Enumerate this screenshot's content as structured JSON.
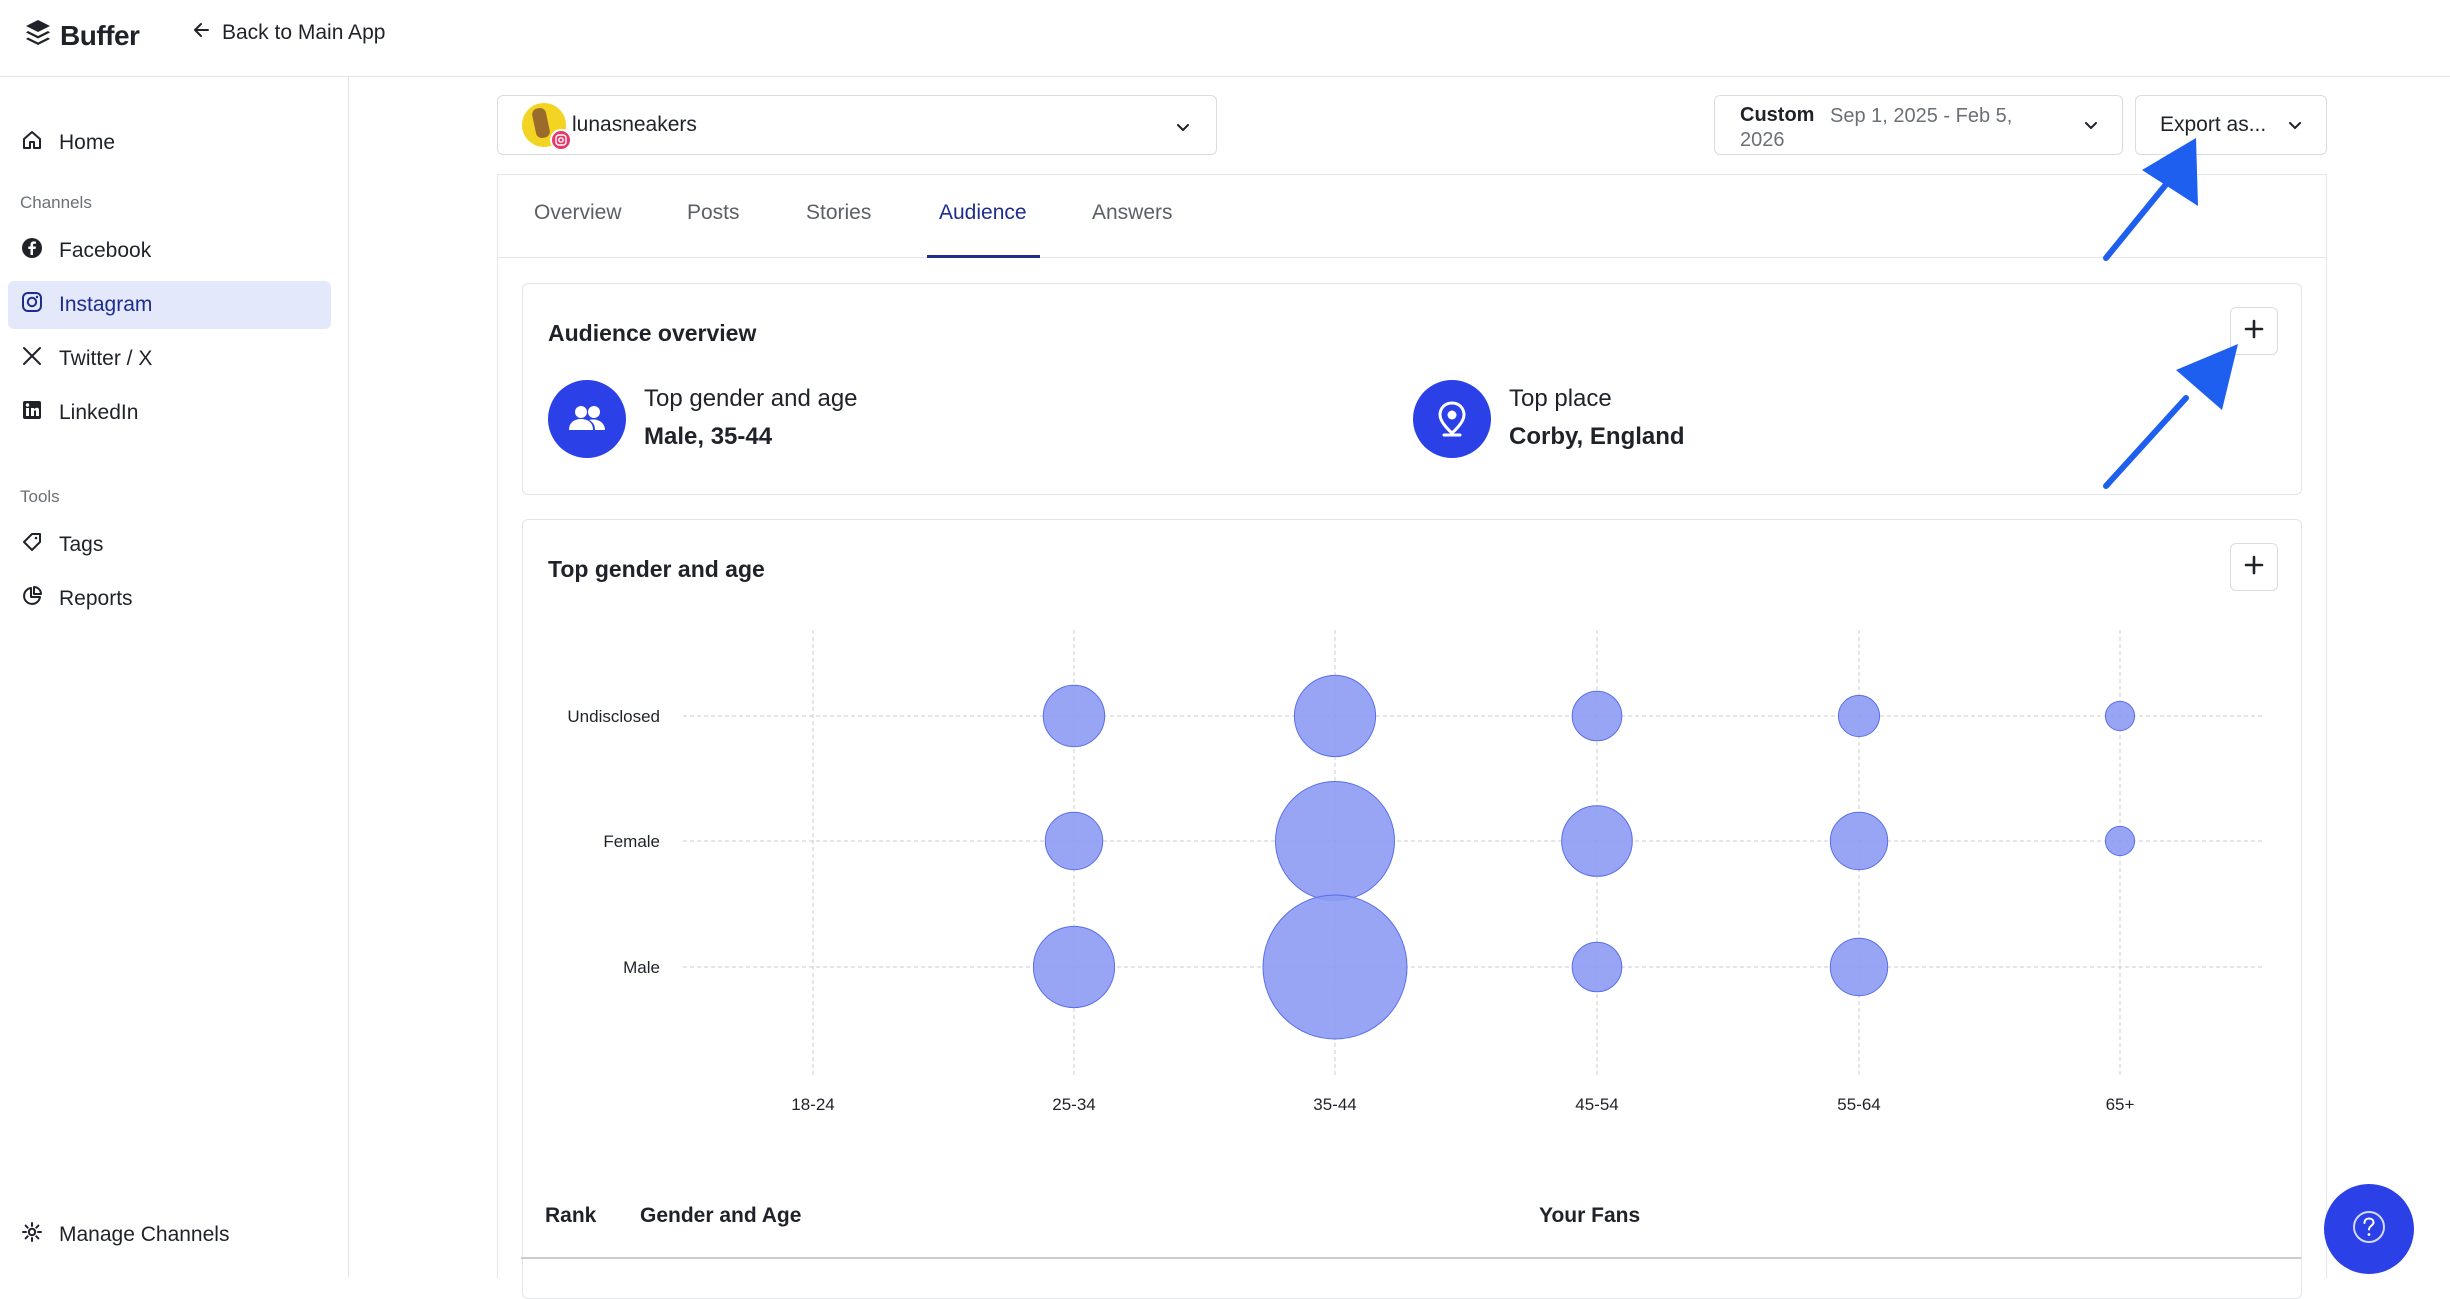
{
  "app": {
    "brand": "Buffer",
    "back_label": "Back to Main App"
  },
  "sidebar": {
    "home": "Home",
    "channels_heading": "Channels",
    "channels": [
      {
        "label": "Facebook",
        "icon": "facebook-icon"
      },
      {
        "label": "Instagram",
        "icon": "instagram-icon",
        "active": true
      },
      {
        "label": "Twitter / X",
        "icon": "x-icon"
      },
      {
        "label": "LinkedIn",
        "icon": "linkedin-icon"
      }
    ],
    "tools_heading": "Tools",
    "tools": [
      {
        "label": "Tags",
        "icon": "tag-icon"
      },
      {
        "label": "Reports",
        "icon": "pie-chart-icon"
      }
    ],
    "manage_channels": "Manage Channels"
  },
  "header": {
    "account_name": "lunasneakers",
    "date_label": "Custom",
    "date_range": "Sep 1, 2025 - Feb 5, 2026",
    "export_label": "Export as..."
  },
  "tabs": [
    {
      "label": "Overview"
    },
    {
      "label": "Posts"
    },
    {
      "label": "Stories"
    },
    {
      "label": "Audience",
      "active": true
    },
    {
      "label": "Answers"
    }
  ],
  "audience_overview": {
    "title": "Audience overview",
    "top_gender_label": "Top gender and age",
    "top_gender_value": "Male, 35-44",
    "top_place_label": "Top place",
    "top_place_value": "Corby, England"
  },
  "gender_age_card": {
    "title": "Top gender and age"
  },
  "chart_data": {
    "type": "bubble",
    "categories": [
      "18-24",
      "25-34",
      "35-44",
      "45-54",
      "55-64",
      "65+"
    ],
    "rows": [
      "Undisclosed",
      "Female",
      "Male"
    ],
    "series": [
      {
        "name": "Undisclosed",
        "values": [
          0,
          4,
          7,
          2.6,
          1.8,
          0.9
        ]
      },
      {
        "name": "Female",
        "values": [
          0,
          3.5,
          15,
          5.3,
          3.5,
          0.9
        ]
      },
      {
        "name": "Male",
        "values": [
          0,
          7,
          22,
          2.6,
          3.5,
          0
        ]
      }
    ],
    "grid": true,
    "colors": {
      "bubble_fill": "#8d9bf4",
      "bubble_stroke": "#5a6ee8"
    }
  },
  "table": {
    "col_rank": "Rank",
    "col_gender_age": "Gender and Age",
    "col_fans": "Your Fans"
  },
  "colors": {
    "accent": "#2b40e6",
    "active_tab": "#1d2d8c",
    "active_sidebar_bg": "#e4e8fb",
    "annotation_arrow": "#1f5ff0"
  }
}
